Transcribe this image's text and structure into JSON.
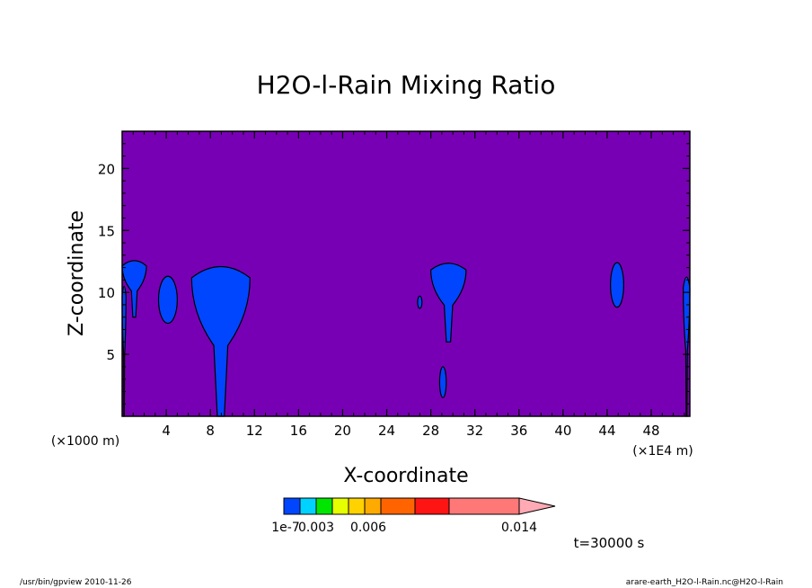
{
  "chart_data": {
    "type": "contour",
    "title": "H2O-l-Rain Mixing Ratio",
    "xlabel": "X-coordinate",
    "ylabel": "Z-coordinate",
    "x_unit_note": "(×1000 m)",
    "x_scale_note": "(×1E4 m)",
    "xlim": [
      0,
      51.5
    ],
    "ylim": [
      0,
      23
    ],
    "x_ticks": [
      4,
      8,
      12,
      16,
      20,
      24,
      28,
      32,
      36,
      40,
      44,
      48
    ],
    "y_ticks": [
      5,
      10,
      15,
      20
    ],
    "background_color": "#7800b4",
    "rain_color": "#0046ff",
    "time_label": "t=30000 s",
    "rain_regions": [
      {
        "name": "edge-left-column",
        "x": [
          0,
          0.35
        ],
        "z": [
          0,
          11
        ]
      },
      {
        "name": "cell-near-1.5",
        "x": [
          0,
          2.2
        ],
        "z": [
          8,
          12.7
        ]
      },
      {
        "name": "cell-near-4.3",
        "x": [
          3.3,
          5.0
        ],
        "z": [
          7.5,
          11.3
        ]
      },
      {
        "name": "main-shaft-near-8",
        "x": [
          6.3,
          11.6
        ],
        "z": [
          0,
          12.7
        ]
      },
      {
        "name": "isolated-near-27",
        "x": [
          26.8,
          27.2
        ],
        "z": [
          8.7,
          9.7
        ]
      },
      {
        "name": "cell-near-29.5",
        "x": [
          28.0,
          31.2
        ],
        "z": [
          6.0,
          12.6
        ]
      },
      {
        "name": "low-streak-near-29",
        "x": [
          28.8,
          29.4
        ],
        "z": [
          1.5,
          4.0
        ]
      },
      {
        "name": "cell-near-45",
        "x": [
          44.3,
          45.5
        ],
        "z": [
          8.8,
          12.4
        ]
      },
      {
        "name": "edge-right-column",
        "x": [
          50.9,
          51.5
        ],
        "z": [
          0,
          11.8
        ]
      }
    ],
    "colorbar": {
      "colors": [
        "#0046ff",
        "#00d2ff",
        "#00e600",
        "#e6ff00",
        "#ffd200",
        "#ffaa00",
        "#ff6400",
        "#ff1414",
        "#ff7878",
        "#ffaab4"
      ],
      "labels": [
        "1e-7",
        "0.003",
        "0.006",
        "0.014"
      ]
    }
  },
  "footer": {
    "left": "/usr/bin/gpview   2010-11-26",
    "right": "arare-earth_H2O-l-Rain.nc@H2O-l-Rain"
  }
}
